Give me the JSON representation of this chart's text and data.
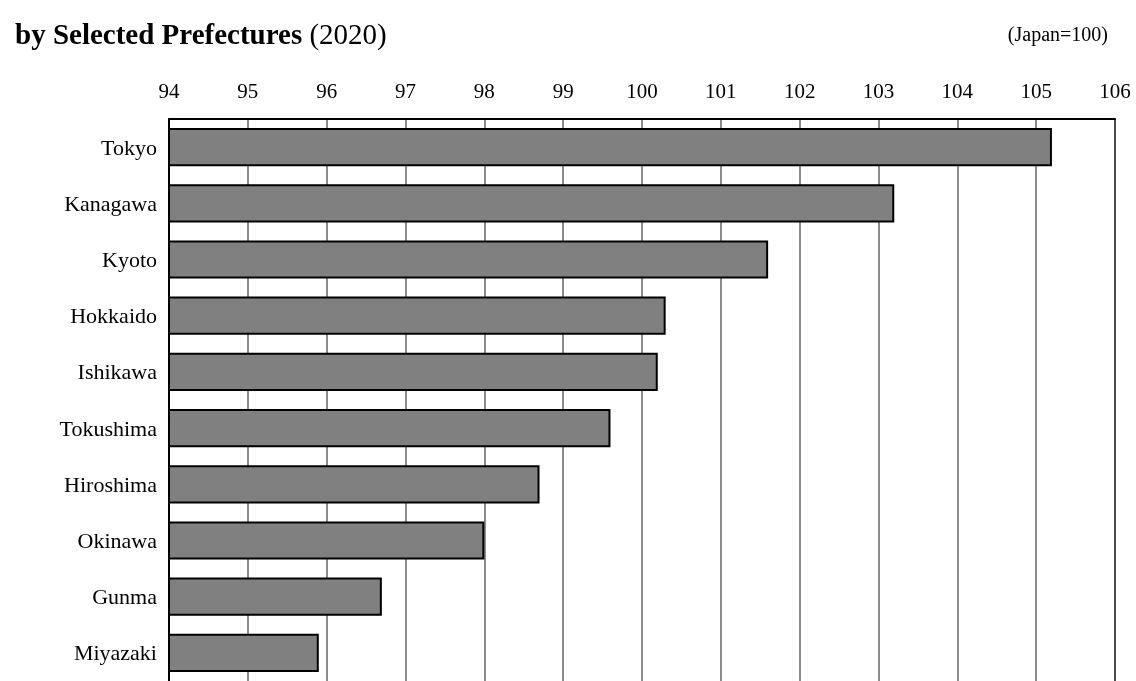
{
  "chart_data": {
    "type": "bar",
    "orientation": "horizontal",
    "title": "by Selected Prefectures (2020)",
    "annotations": [
      "(Japan=100)"
    ],
    "categories": [
      "Tokyo",
      "Kanagawa",
      "Kyoto",
      "Hokkaido",
      "Ishikawa",
      "Tokushima",
      "Hiroshima",
      "Okinawa",
      "Gunma",
      "Miyazaki"
    ],
    "values": [
      105.2,
      103.2,
      101.6,
      100.3,
      100.2,
      99.6,
      98.7,
      98.0,
      96.7,
      95.9
    ],
    "color": "#808080",
    "xlim": [
      94,
      106
    ],
    "xticks": [
      94,
      95,
      96,
      97,
      98,
      99,
      100,
      101,
      102,
      103,
      104,
      105,
      106
    ],
    "grid": "x"
  }
}
